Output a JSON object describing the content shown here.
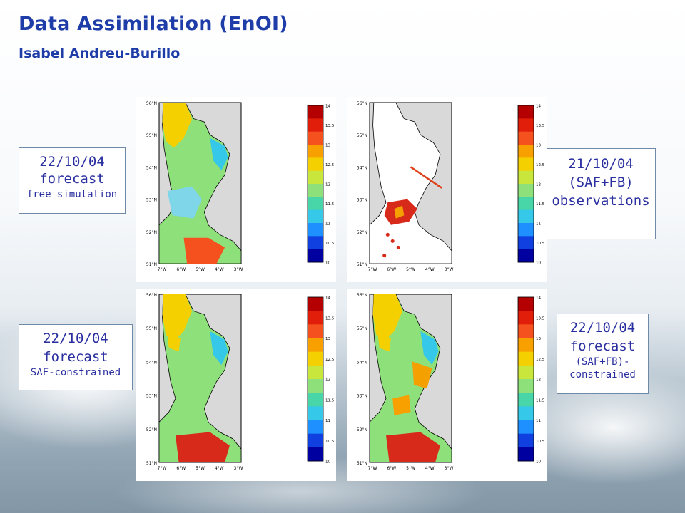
{
  "header": {
    "title": "Data Assimilation (EnOI)",
    "author": "Isabel Andreu-Burillo"
  },
  "labels": {
    "top_left": {
      "date": "22/10/04",
      "kind": "forecast",
      "detail": "free simulation"
    },
    "top_right": {
      "date": "21/10/04",
      "kind": "(SAF+FB)",
      "detail": "observations"
    },
    "bottom_left": {
      "date": "22/10/04",
      "kind": "forecast",
      "detail": "SAF-constrained"
    },
    "bottom_right": {
      "date": "22/10/04",
      "kind": "forecast",
      "detail_line1": "(SAF+FB)-",
      "detail_line2": "constrained"
    }
  },
  "maps": {
    "lat_labels": [
      "56°N",
      "55°N",
      "54°N",
      "53°N",
      "52°N",
      "51°N"
    ],
    "lon_labels": [
      "7°W",
      "6°W",
      "5°W",
      "4°W",
      "3°W"
    ],
    "colorbar_ticks": [
      "14",
      "13.5",
      "13",
      "12.5",
      "12",
      "11.5",
      "11",
      "10.5",
      "10"
    ],
    "colorbar_range": [
      10,
      14
    ],
    "colors": {
      "land": "#d9d9d9",
      "sea_cool": "#7fd6e8",
      "sea_mid": "#8ee07a",
      "sea_warm": "#f4d000",
      "sea_hot": "#d82a1a"
    }
  }
}
